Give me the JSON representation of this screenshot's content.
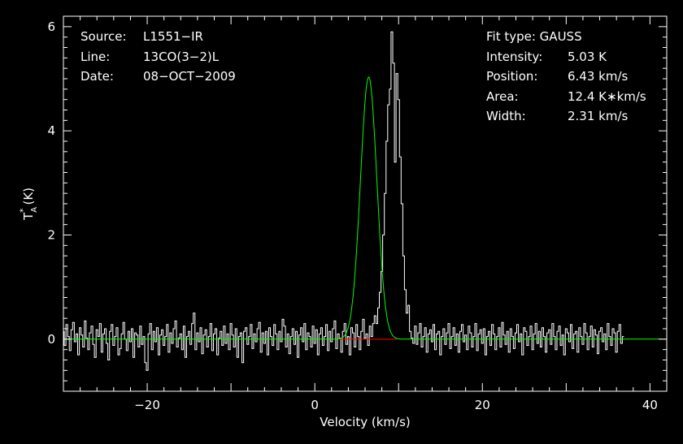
{
  "chart_data": {
    "type": "line",
    "xlabel": "Velocity (km/s)",
    "ylabel": "T",
    "ylabel_sup": "*",
    "ylabel_sub": "A",
    "ylabel_unit": "(K)",
    "xlim": [
      -30,
      42
    ],
    "ylim": [
      -1.0,
      6.2
    ],
    "x_ticks": [
      -20,
      0,
      20,
      40
    ],
    "x_tick_labels": [
      "−20",
      "0",
      "20",
      "40"
    ],
    "y_ticks": [
      0,
      2,
      4,
      6
    ],
    "y_tick_labels": [
      "0",
      "2",
      "4",
      "6"
    ],
    "grid": false,
    "colors": {
      "spectrum": "#ffffff",
      "fit": "#00ff00",
      "baseline": "#ff0000",
      "background": "#000000",
      "axes": "#ffffff"
    },
    "info_left": [
      {
        "key": "Source:",
        "value": "L1551−IR"
      },
      {
        "key": "Line:",
        "value": "13CO(3−2)L"
      },
      {
        "key": "Date:",
        "value": "08−OCT−2009"
      }
    ],
    "info_right_title": "Fit type: GAUSS",
    "info_right": [
      {
        "key": "Intensity:",
        "value": "5.03 K"
      },
      {
        "key": "Position:",
        "value": "6.43 km/s"
      },
      {
        "key": "Area:",
        "value": "12.4 K∗km/s"
      },
      {
        "key": "Width:",
        "value": "2.31 km/s"
      }
    ],
    "fit": {
      "amplitude": 5.03,
      "center": 6.43,
      "fwhm": 2.31
    },
    "baseline_range": [
      3.0,
      9.8
    ],
    "series": [
      {
        "name": "spectrum",
        "x_start": -30.0,
        "x_step": 0.2,
        "y": [
          0.15,
          -0.12,
          0.28,
          0.05,
          -0.22,
          0.18,
          0.32,
          -0.05,
          0.1,
          -0.3,
          0.22,
          0.08,
          -0.15,
          0.35,
          0.02,
          -0.2,
          0.12,
          0.25,
          -0.1,
          -0.35,
          0.18,
          0.05,
          0.3,
          -0.25,
          0.1,
          0.2,
          -0.08,
          -0.4,
          0.15,
          0.28,
          -0.12,
          0.05,
          0.22,
          -0.3,
          -0.18,
          0.1,
          0.32,
          0.0,
          -0.22,
          0.15,
          -0.05,
          0.2,
          -0.35,
          0.12,
          0.08,
          -0.15,
          0.25,
          -0.1,
          0.05,
          -0.45,
          -0.6,
          0.1,
          0.3,
          -0.2,
          0.15,
          -0.05,
          0.22,
          -0.3,
          0.08,
          0.18,
          -0.12,
          0.05,
          0.28,
          -0.25,
          0.12,
          -0.08,
          0.2,
          0.35,
          -0.15,
          0.02,
          0.1,
          -0.2,
          0.25,
          -0.35,
          0.05,
          0.15,
          -0.1,
          0.3,
          0.5,
          -0.2,
          0.12,
          -0.05,
          0.22,
          -0.28,
          0.08,
          0.18,
          -0.15,
          0.05,
          0.3,
          -0.22,
          0.1,
          0.2,
          -0.3,
          0.02,
          0.15,
          -0.12,
          0.25,
          -0.08,
          0.1,
          -0.2,
          0.3,
          0.08,
          -0.15,
          0.2,
          -0.35,
          0.05,
          0.12,
          -0.45,
          0.15,
          0.22,
          -0.1,
          0.05,
          0.28,
          -0.18,
          0.1,
          -0.05,
          0.2,
          0.32,
          -0.25,
          0.12,
          -0.08,
          0.15,
          -0.3,
          0.22,
          0.05,
          -0.12,
          0.28,
          0.1,
          -0.2,
          0.15,
          -0.05,
          0.38,
          0.25,
          -0.15,
          0.1,
          -0.28,
          0.05,
          0.2,
          -0.1,
          0.15,
          -0.35,
          0.08,
          0.22,
          -0.05,
          0.3,
          -0.2,
          0.12,
          0.05,
          -0.15,
          0.25,
          -0.08,
          0.18,
          -0.3,
          0.1,
          0.22,
          -0.12,
          0.05,
          0.28,
          -0.22,
          0.15,
          -0.05,
          0.2,
          0.35,
          -0.18,
          0.1,
          0.02,
          -0.25,
          0.15,
          0.3,
          -0.1,
          0.05,
          -0.3,
          0.22,
          0.12,
          -0.15,
          0.28,
          0.05,
          -0.2,
          0.15,
          0.38,
          0.02,
          0.1,
          -0.12,
          0.25,
          0.05,
          0.3,
          0.45,
          0.3,
          0.6,
          0.9,
          1.3,
          2.0,
          2.8,
          3.8,
          4.5,
          4.8,
          5.9,
          5.3,
          3.4,
          5.1,
          4.6,
          3.5,
          2.6,
          1.6,
          0.95,
          0.5,
          0.65,
          0.15,
          0.02,
          -0.08,
          0.25,
          -0.1,
          0.12,
          0.3,
          -0.15,
          0.05,
          0.22,
          -0.25,
          0.1,
          0.18,
          -0.05,
          0.28,
          -0.2,
          0.1,
          0.15,
          -0.3,
          0.05,
          0.2,
          -0.1,
          0.12,
          0.3,
          -0.18,
          0.05,
          0.22,
          -0.12,
          0.1,
          -0.25,
          0.15,
          0.28,
          -0.05,
          0.08,
          -0.2,
          0.25,
          0.12,
          -0.15,
          0.05,
          0.3,
          -0.22,
          0.1,
          0.18,
          -0.08,
          0.2,
          -0.3,
          0.05,
          0.15,
          -0.12,
          0.28,
          0.1,
          -0.2,
          0.05,
          0.22,
          -0.15,
          0.32,
          0.08,
          -0.1,
          0.15,
          -0.25,
          0.2,
          0.05,
          -0.18,
          0.12,
          0.28,
          -0.05,
          0.1,
          -0.3,
          0.22,
          0.15,
          -0.12,
          0.05,
          0.25,
          -0.2,
          0.1,
          0.3,
          -0.08,
          0.15,
          -0.15,
          0.22,
          0.05,
          -0.25,
          0.12,
          0.18,
          -0.1,
          0.3,
          0.05,
          -0.2,
          0.15,
          0.25,
          -0.12,
          0.08,
          -0.3,
          0.2,
          0.12,
          -0.05,
          0.28,
          -0.18,
          0.1,
          0.15,
          -0.25,
          0.22,
          0.05,
          -0.1,
          0.3,
          0.12,
          -0.2,
          0.05,
          0.25,
          -0.15,
          0.18,
          0.08,
          -0.28,
          0.15,
          0.22,
          -0.05,
          0.1,
          -0.2,
          0.3,
          0.05,
          -0.12,
          0.2,
          0.12,
          -0.25,
          0.15,
          0.28,
          -0.08,
          0.05
        ]
      }
    ]
  }
}
